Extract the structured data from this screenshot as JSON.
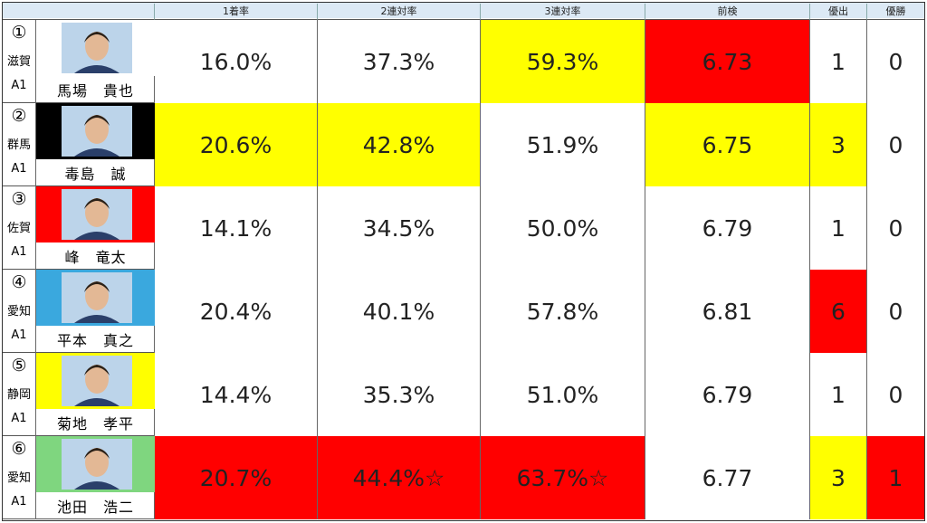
{
  "headers": [
    "1着率",
    "2連対率",
    "3連対率",
    "前検",
    "優出",
    "優勝"
  ],
  "colors": {
    "yellow": "#ffff00",
    "red": "#ff0000",
    "header": "#dce9f5"
  },
  "rows": [
    {
      "lane": "①",
      "pref": "滋賀",
      "cls": "A1",
      "name": "馬場　貴也",
      "band": "#ffffff",
      "win": "16.0%",
      "two": "37.3%",
      "three": "59.3%",
      "pre": "6.73",
      "fin": "1",
      "vic": "0",
      "win_bg": "#ffffff",
      "two_bg": "#ffffff",
      "three_bg": "#ffff00",
      "pre_bg": "#ff0000",
      "fin_bg": "#ffffff",
      "vic_bg": "#ffffff"
    },
    {
      "lane": "②",
      "pref": "群馬",
      "cls": "A1",
      "name": "毒島　誠",
      "band": "#000000",
      "win": "20.6%",
      "two": "42.8%",
      "three": "51.9%",
      "pre": "6.75",
      "fin": "3",
      "vic": "0",
      "win_bg": "#ffff00",
      "two_bg": "#ffff00",
      "three_bg": "#ffffff",
      "pre_bg": "#ffff00",
      "fin_bg": "#ffff00",
      "vic_bg": "#ffffff"
    },
    {
      "lane": "③",
      "pref": "佐賀",
      "cls": "A1",
      "name": "峰　竜太",
      "band": "#ff0000",
      "win": "14.1%",
      "two": "34.5%",
      "three": "50.0%",
      "pre": "6.79",
      "fin": "1",
      "vic": "0",
      "win_bg": "#ffffff",
      "two_bg": "#ffffff",
      "three_bg": "#ffffff",
      "pre_bg": "#ffffff",
      "fin_bg": "#ffffff",
      "vic_bg": "#ffffff"
    },
    {
      "lane": "④",
      "pref": "愛知",
      "cls": "A1",
      "name": "平本　真之",
      "band": "#3aa8de",
      "win": "20.4%",
      "two": "40.1%",
      "three": "57.8%",
      "pre": "6.81",
      "fin": "6",
      "vic": "0",
      "win_bg": "#ffffff",
      "two_bg": "#ffffff",
      "three_bg": "#ffffff",
      "pre_bg": "#ffffff",
      "fin_bg": "#ff0000",
      "vic_bg": "#ffffff"
    },
    {
      "lane": "⑤",
      "pref": "静岡",
      "cls": "A1",
      "name": "菊地　孝平",
      "band": "#ffff00",
      "win": "14.4%",
      "two": "35.3%",
      "three": "51.0%",
      "pre": "6.79",
      "fin": "1",
      "vic": "0",
      "win_bg": "#ffffff",
      "two_bg": "#ffffff",
      "three_bg": "#ffffff",
      "pre_bg": "#ffffff",
      "fin_bg": "#ffffff",
      "vic_bg": "#ffffff"
    },
    {
      "lane": "⑥",
      "pref": "愛知",
      "cls": "A1",
      "name": "池田　浩二",
      "band": "#7fd67f",
      "win": "20.7%",
      "two": "44.4%☆",
      "three": "63.7%☆",
      "pre": "6.77",
      "fin": "3",
      "vic": "1",
      "win_bg": "#ff0000",
      "two_bg": "#ff0000",
      "three_bg": "#ff0000",
      "pre_bg": "#ffffff",
      "fin_bg": "#ffff00",
      "vic_bg": "#ff0000"
    }
  ]
}
